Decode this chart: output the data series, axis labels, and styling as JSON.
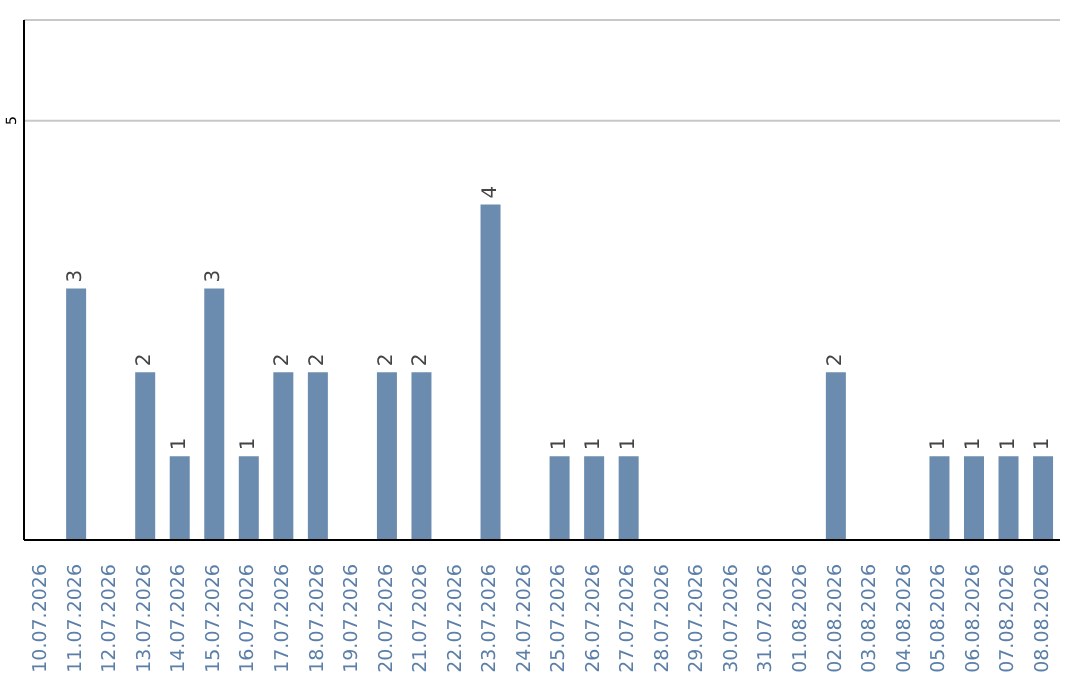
{
  "chart_data": {
    "type": "bar",
    "categories": [
      "10.07.2026",
      "11.07.2026",
      "12.07.2026",
      "13.07.2026",
      "14.07.2026",
      "15.07.2026",
      "16.07.2026",
      "17.07.2026",
      "18.07.2026",
      "19.07.2026",
      "20.07.2026",
      "21.07.2026",
      "22.07.2026",
      "23.07.2026",
      "24.07.2026",
      "25.07.2026",
      "26.07.2026",
      "27.07.2026",
      "28.07.2026",
      "29.07.2026",
      "30.07.2026",
      "31.07.2026",
      "01.08.2026",
      "02.08.2026",
      "03.08.2026",
      "04.08.2026",
      "05.08.2026",
      "06.08.2026",
      "07.08.2026",
      "08.08.2026"
    ],
    "values": [
      0,
      3,
      0,
      2,
      1,
      3,
      1,
      2,
      2,
      0,
      2,
      2,
      0,
      4,
      0,
      1,
      1,
      1,
      0,
      0,
      0,
      0,
      0,
      2,
      0,
      0,
      1,
      1,
      1,
      1
    ],
    "value_labels": [
      null,
      "3",
      null,
      "2",
      "1",
      "3",
      "1",
      "2",
      "2",
      null,
      "2",
      "2",
      null,
      "4",
      null,
      "1",
      "1",
      "1",
      null,
      null,
      null,
      null,
      null,
      "2",
      null,
      null,
      "1",
      "1",
      "1",
      "1"
    ],
    "color": "#6b8cae",
    "ylim": [
      0,
      6.2
    ],
    "yticks": [
      5
    ],
    "grid": "y"
  }
}
